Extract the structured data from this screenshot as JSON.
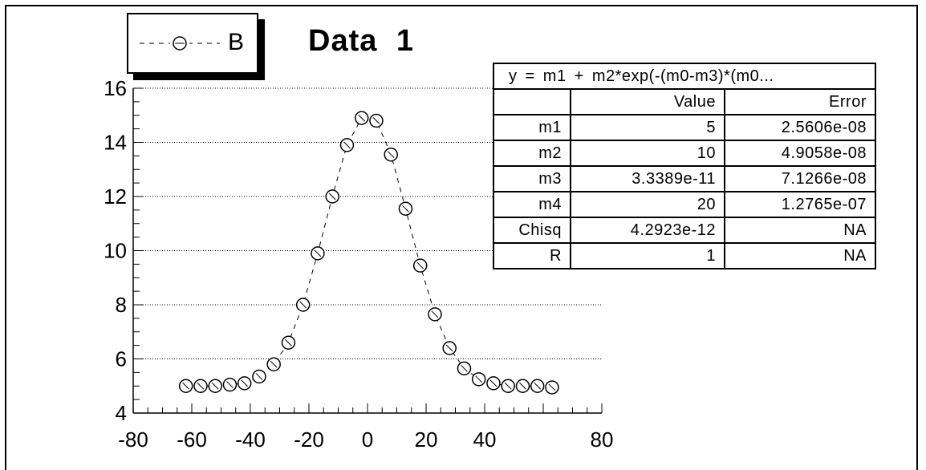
{
  "chart_data": {
    "type": "scatter",
    "title": "Data 1",
    "legend": [
      {
        "name": "B",
        "marker": "open-circle",
        "line": "dashed"
      }
    ],
    "legend_position": "top-left",
    "series": [
      {
        "name": "B",
        "x": [
          -62,
          -57,
          -52,
          -47,
          -42,
          -37,
          -32,
          -27,
          -22,
          -17,
          -12,
          -7,
          -2,
          3,
          8,
          13,
          18,
          23,
          28,
          33,
          38,
          43,
          48,
          53,
          58,
          63
        ],
        "y": [
          5.0,
          5.0,
          5.0,
          5.05,
          5.1,
          5.35,
          5.8,
          6.6,
          8.0,
          9.9,
          12.0,
          13.9,
          14.9,
          14.8,
          13.55,
          11.55,
          9.45,
          7.65,
          6.4,
          5.65,
          5.25,
          5.1,
          5.0,
          5.0,
          5.0,
          4.95
        ]
      }
    ],
    "xlim": [
      -80,
      80
    ],
    "ylim": [
      4,
      16
    ],
    "x_ticks": [
      "-80",
      "-60",
      "-40",
      "-20",
      "0",
      "20",
      "40",
      "80"
    ],
    "y_ticks": [
      "4",
      "6",
      "8",
      "10",
      "12",
      "14",
      "16"
    ],
    "gridlines": "horizontal-dotted",
    "fit_table": {
      "equation": "y  =  m1  +  m2*exp(-(m0-m3)*(m0...",
      "headers": [
        "",
        "Value",
        "Error"
      ],
      "rows": [
        [
          "m1",
          "5",
          "2.5606e-08"
        ],
        [
          "m2",
          "10",
          "4.9058e-08"
        ],
        [
          "m3",
          "3.3389e-11",
          "7.1266e-08"
        ],
        [
          "m4",
          "20",
          "1.2765e-07"
        ],
        [
          "Chisq",
          "4.2923e-12",
          "NA"
        ],
        [
          "R",
          "1",
          "NA"
        ]
      ]
    }
  }
}
